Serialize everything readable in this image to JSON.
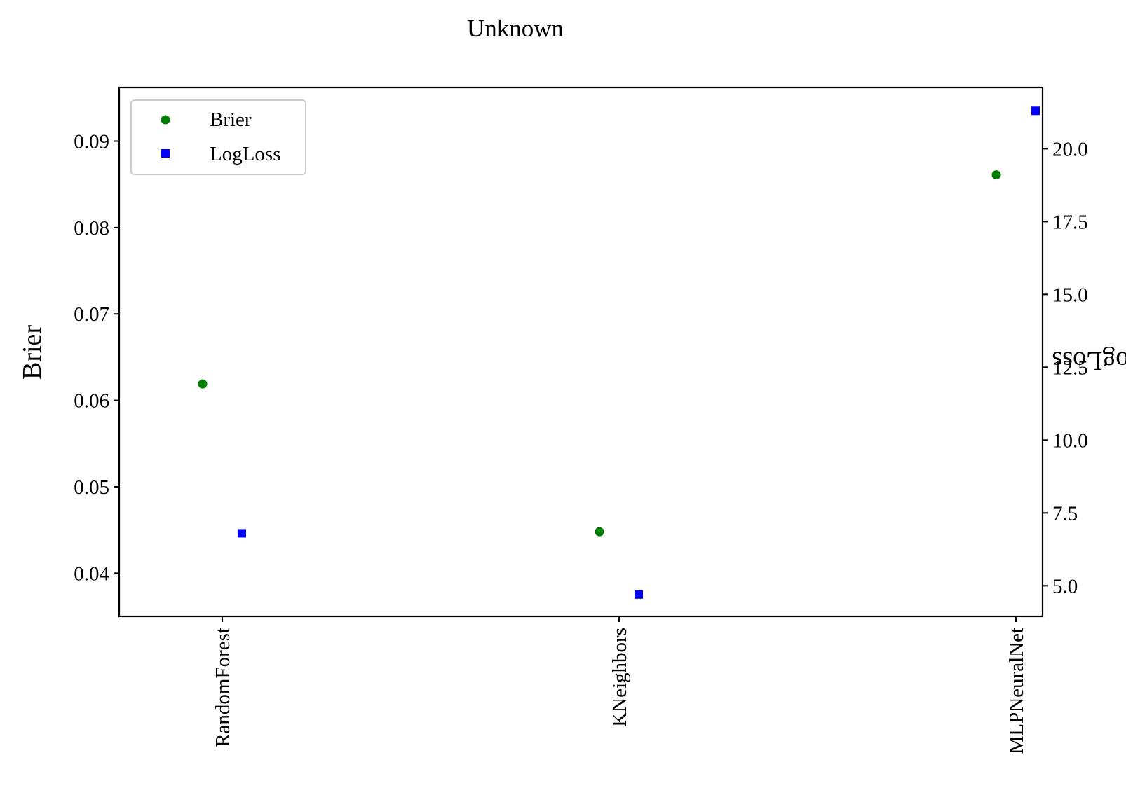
{
  "chart_data": {
    "type": "scatter",
    "title": "Unknown",
    "categories": [
      "RandomForest",
      "KNeighbors",
      "MLPNeuralNet"
    ],
    "left_axis": {
      "label": "Brier",
      "ylim": [
        0.035,
        0.0962
      ],
      "ticks": [
        0.04,
        0.05,
        0.06,
        0.07,
        0.08,
        0.09
      ],
      "tick_labels": [
        "0.04",
        "0.05",
        "0.06",
        "0.07",
        "0.08",
        "0.09"
      ]
    },
    "right_axis": {
      "label": "LogLoss",
      "ylim": [
        3.95,
        22.1
      ],
      "ticks": [
        5.0,
        7.5,
        10.0,
        12.5,
        15.0,
        17.5,
        20.0
      ],
      "tick_labels": [
        "5.0",
        "7.5",
        "10.0",
        "12.5",
        "15.0",
        "17.5",
        "20.0"
      ]
    },
    "series": [
      {
        "name": "Brier",
        "axis": "left",
        "marker": "circle",
        "color": "#008000",
        "values": [
          0.0619,
          0.0448,
          0.0861
        ]
      },
      {
        "name": "LogLoss",
        "axis": "right",
        "marker": "square",
        "color": "#0000ff",
        "values": [
          6.8,
          4.7,
          21.3
        ]
      }
    ],
    "legend": {
      "position": "top-left"
    },
    "grid": false
  }
}
